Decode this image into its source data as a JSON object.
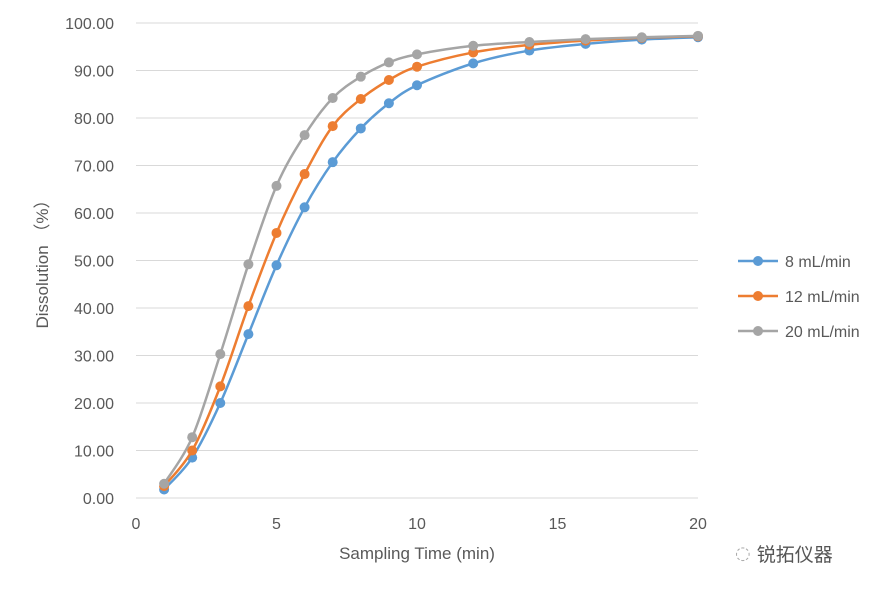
{
  "chart_data": {
    "type": "line",
    "title": "",
    "xlabel": "Sampling Time (min)",
    "ylabel": "Dissolution （%）",
    "xlim": [
      0,
      20
    ],
    "ylim": [
      0,
      100
    ],
    "xticks": [
      0,
      5,
      10,
      15,
      20
    ],
    "yticks": [
      "0.00",
      "10.00",
      "20.00",
      "30.00",
      "40.00",
      "50.00",
      "60.00",
      "70.00",
      "80.00",
      "90.00",
      "100.00"
    ],
    "grid": "horizontal",
    "legend_position": "right",
    "x": [
      1,
      2,
      3,
      4,
      5,
      6,
      7,
      8,
      9,
      10,
      12,
      14,
      16,
      18,
      20
    ],
    "series": [
      {
        "name": "8 mL/min",
        "color": "#5B9BD5",
        "values": [
          1.8,
          8.5,
          20.0,
          34.5,
          49.0,
          61.2,
          70.7,
          77.8,
          83.1,
          86.9,
          91.5,
          94.2,
          95.6,
          96.5,
          97.0
        ]
      },
      {
        "name": "12 mL/min",
        "color": "#ED7D31",
        "values": [
          2.5,
          10.0,
          23.5,
          40.4,
          55.8,
          68.2,
          78.3,
          84.0,
          88.0,
          90.8,
          93.8,
          95.4,
          96.3,
          96.9,
          97.2
        ]
      },
      {
        "name": "20 mL/min",
        "color": "#A5A5A5",
        "values": [
          3.0,
          12.8,
          30.3,
          49.2,
          65.7,
          76.4,
          84.2,
          88.7,
          91.7,
          93.4,
          95.2,
          96.0,
          96.6,
          97.0,
          97.3
        ]
      }
    ]
  },
  "watermark": "锐拓仪器"
}
